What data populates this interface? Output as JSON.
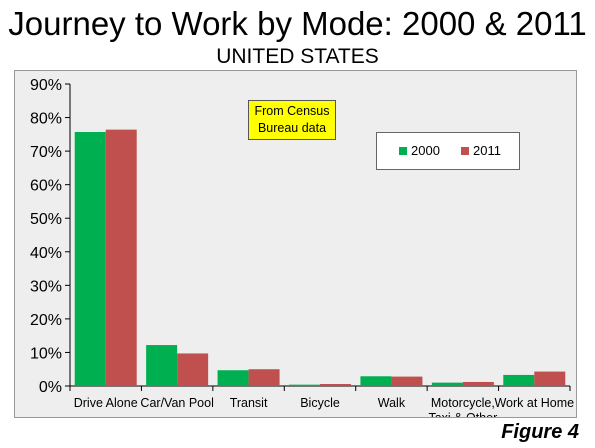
{
  "title": "Journey to Work by Mode: 2000 & 2011",
  "subtitle": "UNITED STATES",
  "note": [
    "From Census",
    "Bureau data"
  ],
  "figure_label": "Figure 4",
  "colors": {
    "2000": "#00b050",
    "2011": "#c0504d"
  },
  "chart_data": {
    "type": "bar",
    "categories": [
      [
        "Drive Alone"
      ],
      [
        "Car/Van Pool"
      ],
      [
        "Transit"
      ],
      [
        "Bicycle"
      ],
      [
        "Walk"
      ],
      [
        "Motorcycle,",
        "Taxi & Other"
      ],
      [
        "Work at Home"
      ]
    ],
    "series": [
      {
        "name": "2000",
        "values": [
          75.7,
          12.2,
          4.7,
          0.4,
          2.9,
          1.0,
          3.3
        ]
      },
      {
        "name": "2011",
        "values": [
          76.4,
          9.7,
          5.0,
          0.6,
          2.8,
          1.2,
          4.3
        ]
      }
    ],
    "yticks": [
      "0%",
      "10%",
      "20%",
      "30%",
      "40%",
      "50%",
      "60%",
      "70%",
      "80%",
      "90%"
    ],
    "ylim": [
      0,
      90
    ],
    "legend_position": "top-right",
    "grid": false
  }
}
